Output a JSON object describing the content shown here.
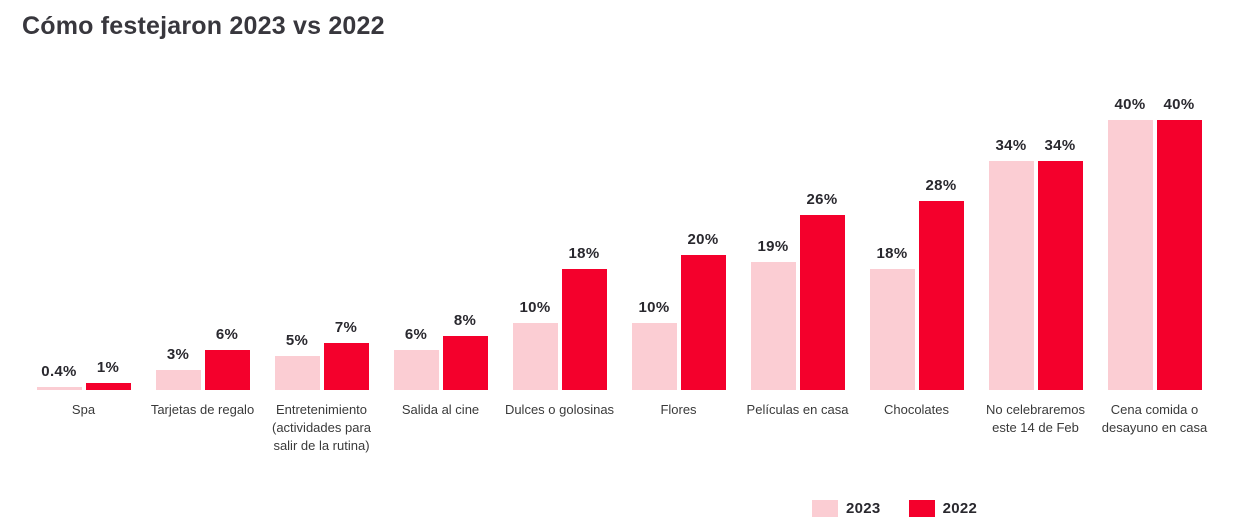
{
  "page": {
    "title": "Cómo festejaron 2023 vs 2022"
  },
  "colors": {
    "series_2023": "#FBCDD3",
    "series_2022": "#F4002C",
    "title_text": "#38373d",
    "label_text": "#29282e",
    "category_text": "#3a3a3a",
    "background": "#ffffff"
  },
  "chart_data": {
    "type": "bar",
    "title": "Cómo festejaron 2023 vs 2022",
    "categories": [
      "Spa",
      "Tarjetas de regalo",
      "Entretenimiento (actividades para salir de la rutina)",
      "Salida al cine",
      "Dulces o golosinas",
      "Flores",
      "Películas en casa",
      "Chocolates",
      "No celebraremos este 14 de Feb",
      "Cena comida o desayuno en casa"
    ],
    "series": [
      {
        "name": "2023",
        "color": "#FBCDD3",
        "values": [
          0.4,
          3,
          5,
          6,
          10,
          10,
          19,
          18,
          34,
          40
        ],
        "labels": [
          "0.4%",
          "3%",
          "5%",
          "6%",
          "10%",
          "10%",
          "19%",
          "18%",
          "34%",
          "40%"
        ]
      },
      {
        "name": "2022",
        "color": "#F4002C",
        "values": [
          1,
          6,
          7,
          8,
          18,
          20,
          26,
          28,
          34,
          40
        ],
        "labels": [
          "1%",
          "6%",
          "7%",
          "8%",
          "18%",
          "20%",
          "26%",
          "28%",
          "34%",
          "40%"
        ]
      }
    ],
    "xlabel": "",
    "ylabel": "",
    "ylim": [
      0,
      40
    ],
    "grid": false,
    "axes_visible": false,
    "value_labels": true,
    "legend_position": "bottom-right"
  },
  "legend": {
    "items": [
      {
        "label": "2023",
        "color": "#FBCDD3"
      },
      {
        "label": "2022",
        "color": "#F4002C"
      }
    ]
  }
}
